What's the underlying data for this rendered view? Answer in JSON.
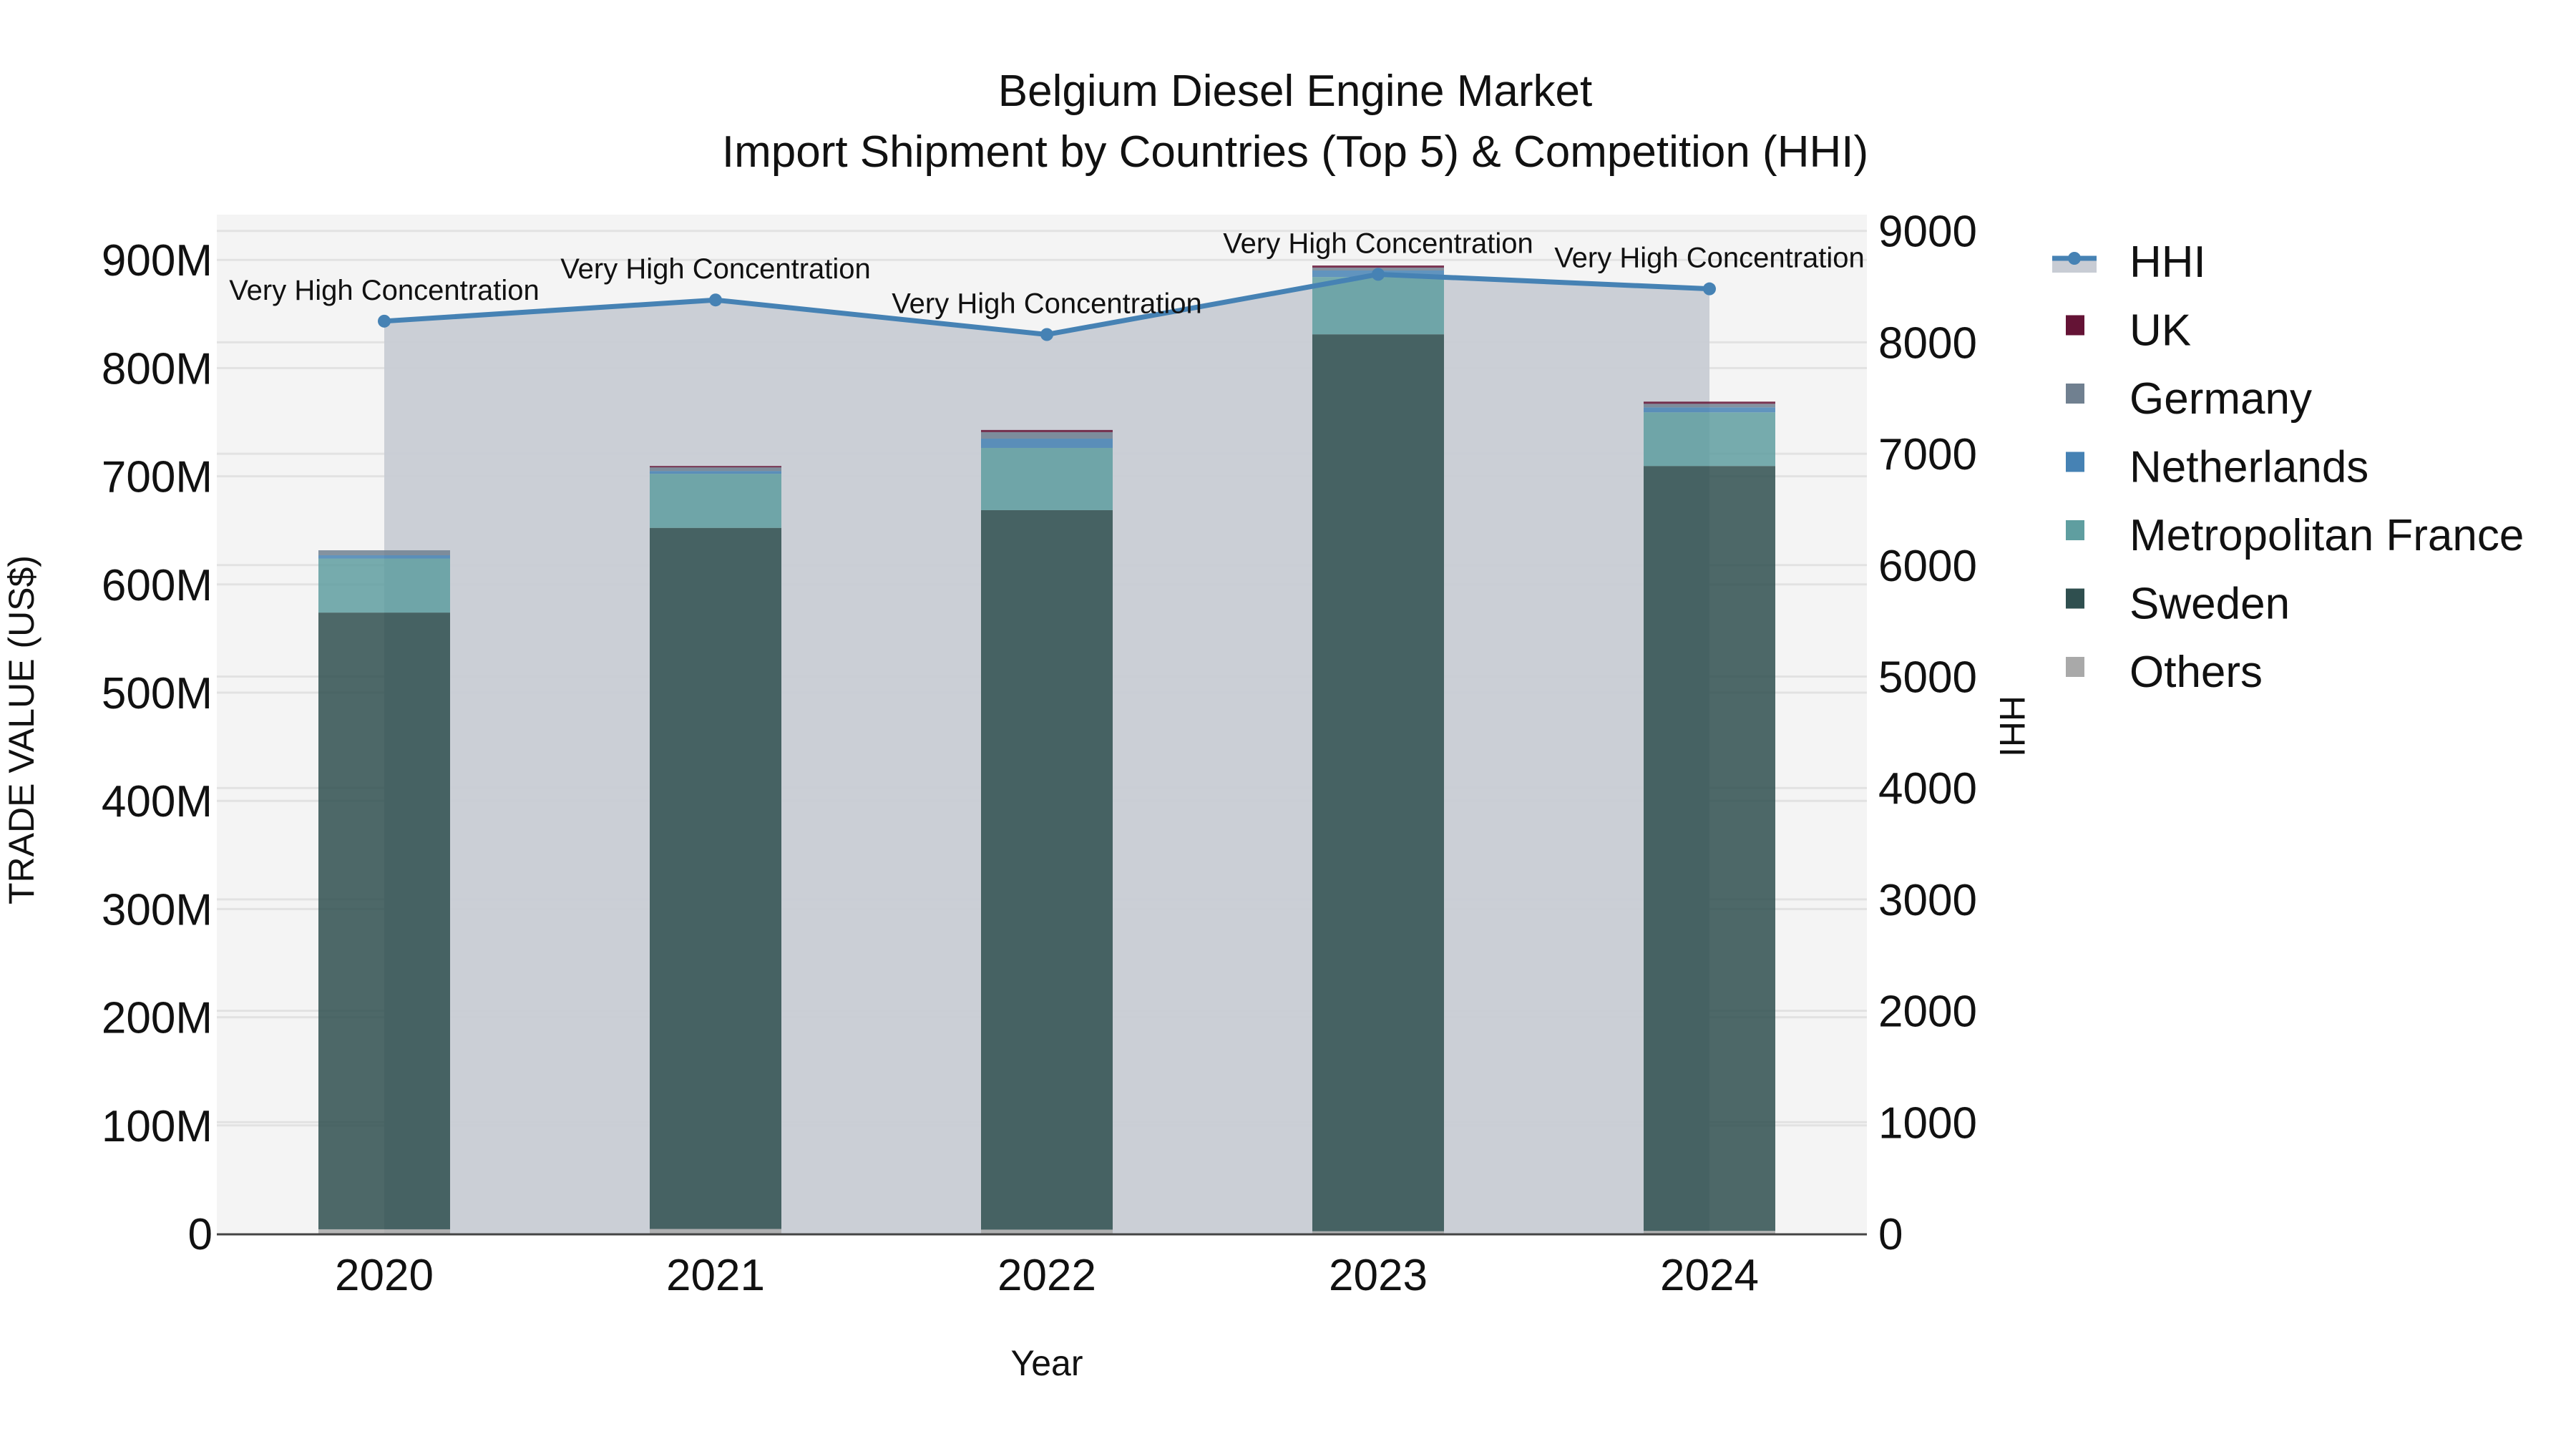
{
  "chart_data": {
    "type": "bar",
    "stacked": true,
    "title": "Belgium Diesel Engine Market",
    "subtitle": "Import Shipment by Countries (Top 5) & Competition (HHI)",
    "xlabel": "Year",
    "ylabel": "TRADE VALUE (US$)",
    "y2label": "HHI",
    "categories": [
      "2020",
      "2021",
      "2022",
      "2023",
      "2024"
    ],
    "ylim": [
      0,
      930000000
    ],
    "y2lim": [
      0,
      9150
    ],
    "y_ticks": [
      "0",
      "100M",
      "200M",
      "300M",
      "400M",
      "500M",
      "600M",
      "700M",
      "800M",
      "900M"
    ],
    "y_tick_values": [
      0,
      100000000,
      200000000,
      300000000,
      400000000,
      500000000,
      600000000,
      700000000,
      800000000,
      900000000
    ],
    "y2_ticks": [
      "0",
      "1000",
      "2000",
      "3000",
      "4000",
      "5000",
      "6000",
      "7000",
      "8000",
      "9000"
    ],
    "y2_tick_values": [
      0,
      1000,
      2000,
      3000,
      4000,
      5000,
      6000,
      7000,
      8000,
      9000
    ],
    "grid": true,
    "legend_position": "right",
    "series": [
      {
        "name": "Others",
        "color": "#A9A9A9",
        "values": [
          4000000,
          4300000,
          3700000,
          2200000,
          2500000
        ]
      },
      {
        "name": "Sweden",
        "color": "#2F4F4F",
        "values": [
          570000000,
          648000000,
          665000000,
          829000000,
          707000000
        ]
      },
      {
        "name": "Metropolitan France",
        "color": "#5F9EA0",
        "values": [
          50000000,
          50000000,
          57500000,
          53000000,
          49600000
        ]
      },
      {
        "name": "Netherlands",
        "color": "#4682B4",
        "values": [
          3000000,
          2600000,
          8600000,
          6000000,
          4600000
        ]
      },
      {
        "name": "Germany",
        "color": "#708090",
        "values": [
          4600000,
          3300000,
          6000000,
          2600000,
          3300000
        ]
      },
      {
        "name": "UK",
        "color": "#641335",
        "values": [
          0,
          1300000,
          2000000,
          2000000,
          2000000
        ]
      }
    ],
    "line_series": {
      "name": "HHI",
      "axis": "y2",
      "color": "#4682B4",
      "fill_color": "#C8CCD4",
      "values": [
        8190,
        8380,
        8070,
        8610,
        8480
      ],
      "annotations": [
        "Very High Concentration",
        "Very High Concentration",
        "Very High Concentration",
        "Very High Concentration",
        "Very High Concentration"
      ]
    },
    "legend": [
      "HHI",
      "UK",
      "Germany",
      "Netherlands",
      "Metropolitan France",
      "Sweden",
      "Others"
    ]
  }
}
